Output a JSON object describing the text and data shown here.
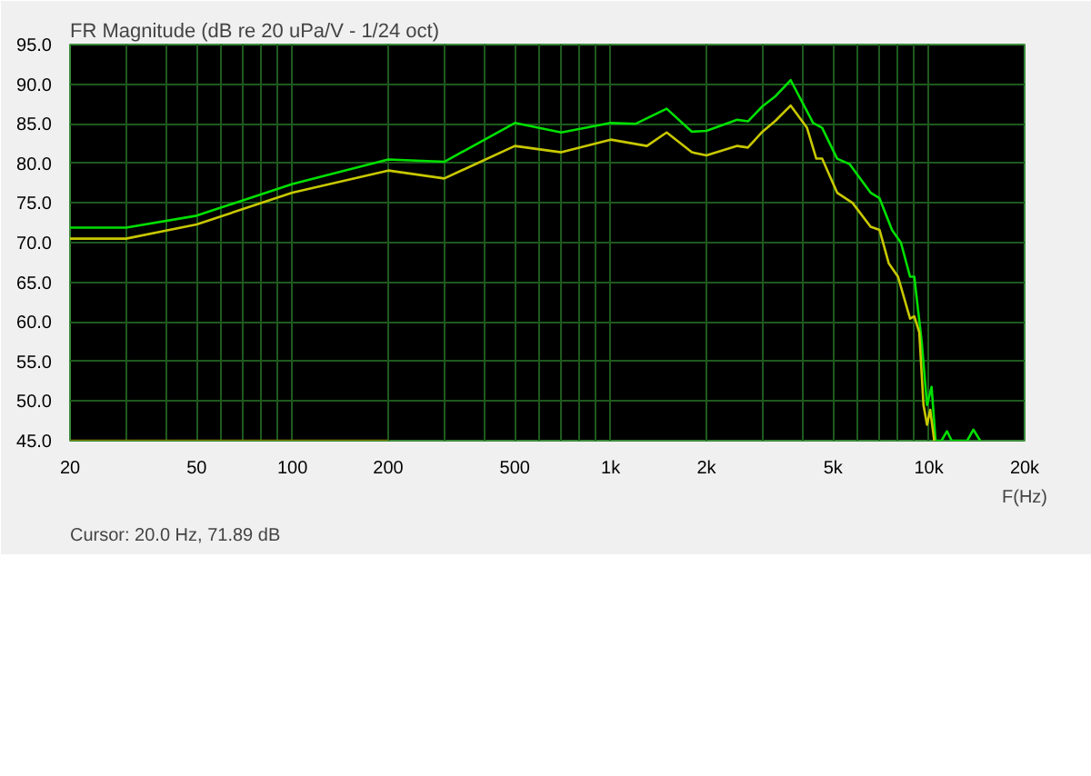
{
  "chart_data": {
    "type": "line",
    "title": "FR Magnitude (dB re 20 uPa/V - 1/24 oct)",
    "xlabel": "F(Hz)",
    "annotations": [
      "Cursor: 20.0 Hz, 71.89 dB"
    ],
    "log": "x",
    "grid": true,
    "xlim": [
      20,
      20000
    ],
    "ylim": [
      45,
      95
    ],
    "xticks": [
      20,
      {
        "value": 30,
        "label": null
      },
      {
        "value": 40,
        "label": null
      },
      50,
      {
        "value": 60,
        "label": null
      },
      {
        "value": 70,
        "label": null
      },
      {
        "value": 80,
        "label": null
      },
      {
        "value": 90,
        "label": null
      },
      100,
      200,
      {
        "value": 300,
        "label": null
      },
      {
        "value": 400,
        "label": null
      },
      500,
      {
        "value": 600,
        "label": null
      },
      {
        "value": 700,
        "label": null
      },
      {
        "value": 800,
        "label": null
      },
      {
        "value": 900,
        "label": null
      },
      {
        "value": 1000,
        "label": "1k"
      },
      {
        "value": 2000,
        "label": "2k"
      },
      {
        "value": 3000,
        "label": null
      },
      {
        "value": 4000,
        "label": null
      },
      {
        "value": 5000,
        "label": "5k"
      },
      {
        "value": 6000,
        "label": null
      },
      {
        "value": 7000,
        "label": null
      },
      {
        "value": 8000,
        "label": null
      },
      {
        "value": 9000,
        "label": null
      },
      {
        "value": 10000,
        "label": "10k"
      },
      {
        "value": 20000,
        "label": "20k"
      }
    ],
    "yticks": [
      {
        "value": 45,
        "label": "45.0"
      },
      {
        "value": 50,
        "label": "50.0"
      },
      {
        "value": 55,
        "label": "55.0"
      },
      {
        "value": 60,
        "label": "60.0"
      },
      {
        "value": 65,
        "label": "65.0"
      },
      {
        "value": 70,
        "label": "70.0"
      },
      {
        "value": 75,
        "label": "75.0"
      },
      {
        "value": 80,
        "label": "80.0"
      },
      {
        "value": 85,
        "label": "85.0"
      },
      {
        "value": 90,
        "label": "90.0"
      },
      {
        "value": 95,
        "label": "95.0"
      }
    ],
    "series": [
      {
        "color": "#00e000",
        "x": [
          20,
          30,
          50,
          100,
          200,
          300,
          500,
          700,
          1000,
          1200,
          1500,
          1800,
          2000,
          2500,
          2700,
          3000,
          3300,
          3680,
          4330,
          4620,
          5150,
          5640,
          6560,
          7000,
          7660,
          8170,
          8730,
          9000,
          9500,
          9870,
          10200,
          10500,
          10960,
          11400,
          11800,
          13200,
          13800,
          14500
        ],
        "values": [
          71.9,
          71.9,
          73.4,
          77.4,
          80.5,
          80.2,
          85.1,
          83.9,
          85.1,
          85.0,
          86.9,
          84.0,
          84.1,
          85.5,
          85.3,
          87.2,
          88.5,
          90.5,
          85.1,
          84.5,
          80.6,
          79.9,
          76.3,
          75.6,
          71.6,
          70.0,
          65.7,
          65.7,
          57.4,
          49.5,
          51.8,
          45,
          45,
          46.2,
          45,
          45,
          46.4,
          45
        ]
      },
      {
        "color": "#c8c800",
        "x": [
          20,
          30,
          50,
          100,
          200,
          300,
          500,
          700,
          1000,
          1300,
          1500,
          1800,
          2000,
          2500,
          2700,
          3000,
          3300,
          3680,
          4140,
          4430,
          4620,
          5150,
          5760,
          6560,
          7000,
          7480,
          8000,
          8730,
          9000,
          9330,
          9620,
          9870,
          10100,
          10400
        ],
        "values": [
          70.5,
          70.5,
          72.3,
          76.3,
          79.1,
          78.1,
          82.2,
          81.4,
          83.0,
          82.2,
          83.9,
          81.4,
          81.0,
          82.2,
          82.0,
          84.0,
          85.4,
          87.3,
          84.5,
          80.6,
          80.6,
          76.3,
          75.0,
          72.0,
          71.6,
          67.4,
          65.7,
          60.4,
          60.7,
          58.7,
          49.5,
          47.0,
          48.9,
          45
        ]
      },
      {
        "color": "#808000",
        "x": [
          20,
          200
        ],
        "values": [
          45,
          45
        ]
      }
    ]
  }
}
